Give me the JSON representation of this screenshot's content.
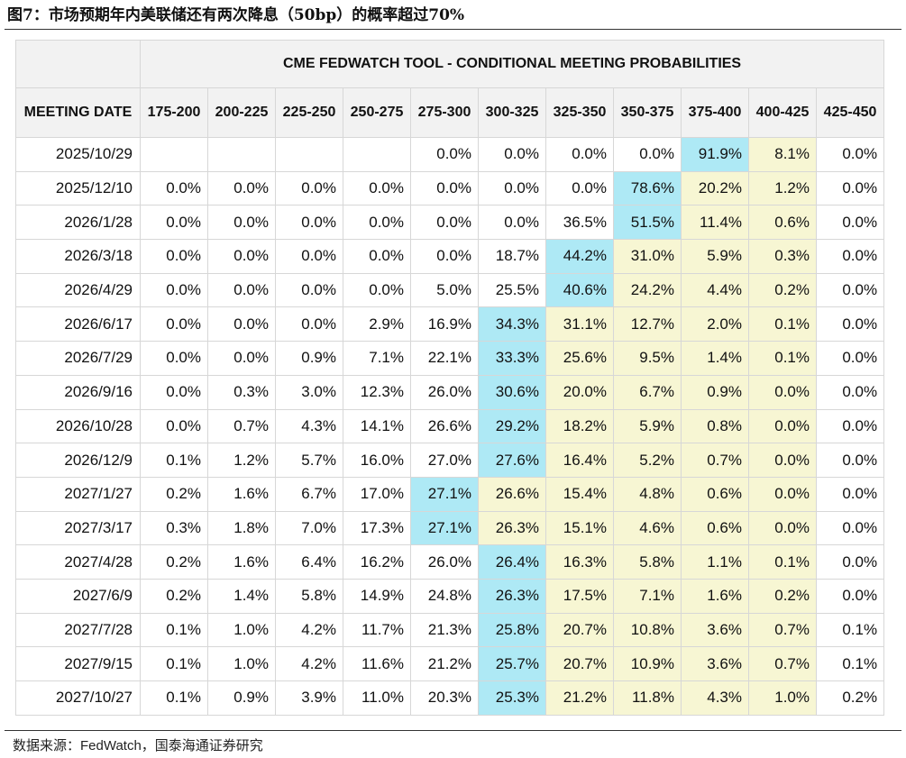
{
  "figure": {
    "title": "图7：市场预期年内美联储还有两次降息（50bp）的概率超过70%",
    "source": "数据来源：FedWatch，国泰海通证券研究"
  },
  "table": {
    "banner": "CME FEDWATCH TOOL - CONDITIONAL MEETING PROBABILITIES",
    "date_header": "MEETING DATE",
    "columns": [
      "175-200",
      "200-225",
      "225-250",
      "250-275",
      "275-300",
      "300-325",
      "325-350",
      "350-375",
      "375-400",
      "400-425",
      "425-450"
    ],
    "rows": [
      {
        "date": "2025/10/29",
        "values": [
          "",
          "",
          "",
          "",
          "0.0%",
          "0.0%",
          "0.0%",
          "0.0%",
          "91.9%",
          "8.1%",
          "0.0%"
        ]
      },
      {
        "date": "2025/12/10",
        "values": [
          "0.0%",
          "0.0%",
          "0.0%",
          "0.0%",
          "0.0%",
          "0.0%",
          "0.0%",
          "78.6%",
          "20.2%",
          "1.2%",
          "0.0%"
        ]
      },
      {
        "date": "2026/1/28",
        "values": [
          "0.0%",
          "0.0%",
          "0.0%",
          "0.0%",
          "0.0%",
          "0.0%",
          "36.5%",
          "51.5%",
          "11.4%",
          "0.6%",
          "0.0%"
        ]
      },
      {
        "date": "2026/3/18",
        "values": [
          "0.0%",
          "0.0%",
          "0.0%",
          "0.0%",
          "0.0%",
          "18.7%",
          "44.2%",
          "31.0%",
          "5.9%",
          "0.3%",
          "0.0%"
        ]
      },
      {
        "date": "2026/4/29",
        "values": [
          "0.0%",
          "0.0%",
          "0.0%",
          "0.0%",
          "5.0%",
          "25.5%",
          "40.6%",
          "24.2%",
          "4.4%",
          "0.2%",
          "0.0%"
        ]
      },
      {
        "date": "2026/6/17",
        "values": [
          "0.0%",
          "0.0%",
          "0.0%",
          "2.9%",
          "16.9%",
          "34.3%",
          "31.1%",
          "12.7%",
          "2.0%",
          "0.1%",
          "0.0%"
        ]
      },
      {
        "date": "2026/7/29",
        "values": [
          "0.0%",
          "0.0%",
          "0.9%",
          "7.1%",
          "22.1%",
          "33.3%",
          "25.6%",
          "9.5%",
          "1.4%",
          "0.1%",
          "0.0%"
        ]
      },
      {
        "date": "2026/9/16",
        "values": [
          "0.0%",
          "0.3%",
          "3.0%",
          "12.3%",
          "26.0%",
          "30.6%",
          "20.0%",
          "6.7%",
          "0.9%",
          "0.0%",
          "0.0%"
        ]
      },
      {
        "date": "2026/10/28",
        "values": [
          "0.0%",
          "0.7%",
          "4.3%",
          "14.1%",
          "26.6%",
          "29.2%",
          "18.2%",
          "5.9%",
          "0.8%",
          "0.0%",
          "0.0%"
        ]
      },
      {
        "date": "2026/12/9",
        "values": [
          "0.1%",
          "1.2%",
          "5.7%",
          "16.0%",
          "27.0%",
          "27.6%",
          "16.4%",
          "5.2%",
          "0.7%",
          "0.0%",
          "0.0%"
        ]
      },
      {
        "date": "2027/1/27",
        "values": [
          "0.2%",
          "1.6%",
          "6.7%",
          "17.0%",
          "27.1%",
          "26.6%",
          "15.4%",
          "4.8%",
          "0.6%",
          "0.0%",
          "0.0%"
        ]
      },
      {
        "date": "2027/3/17",
        "values": [
          "0.3%",
          "1.8%",
          "7.0%",
          "17.3%",
          "27.1%",
          "26.3%",
          "15.1%",
          "4.6%",
          "0.6%",
          "0.0%",
          "0.0%"
        ]
      },
      {
        "date": "2027/4/28",
        "values": [
          "0.2%",
          "1.6%",
          "6.4%",
          "16.2%",
          "26.0%",
          "26.4%",
          "16.3%",
          "5.8%",
          "1.1%",
          "0.1%",
          "0.0%"
        ]
      },
      {
        "date": "2027/6/9",
        "values": [
          "0.2%",
          "1.4%",
          "5.8%",
          "14.9%",
          "24.8%",
          "26.3%",
          "17.5%",
          "7.1%",
          "1.6%",
          "0.2%",
          "0.0%"
        ]
      },
      {
        "date": "2027/7/28",
        "values": [
          "0.1%",
          "1.0%",
          "4.2%",
          "11.7%",
          "21.3%",
          "25.8%",
          "20.7%",
          "10.8%",
          "3.6%",
          "0.7%",
          "0.1%"
        ]
      },
      {
        "date": "2027/9/15",
        "values": [
          "0.1%",
          "1.0%",
          "4.2%",
          "11.6%",
          "21.2%",
          "25.7%",
          "20.7%",
          "10.9%",
          "3.6%",
          "0.7%",
          "0.1%"
        ]
      },
      {
        "date": "2027/10/27",
        "values": [
          "0.1%",
          "0.9%",
          "3.9%",
          "11.0%",
          "20.3%",
          "25.3%",
          "21.2%",
          "11.8%",
          "4.3%",
          "1.0%",
          "0.2%"
        ]
      }
    ],
    "highlight_colors": {
      "blue": "#aee9f5",
      "yellow": "#f7f6d3"
    }
  }
}
